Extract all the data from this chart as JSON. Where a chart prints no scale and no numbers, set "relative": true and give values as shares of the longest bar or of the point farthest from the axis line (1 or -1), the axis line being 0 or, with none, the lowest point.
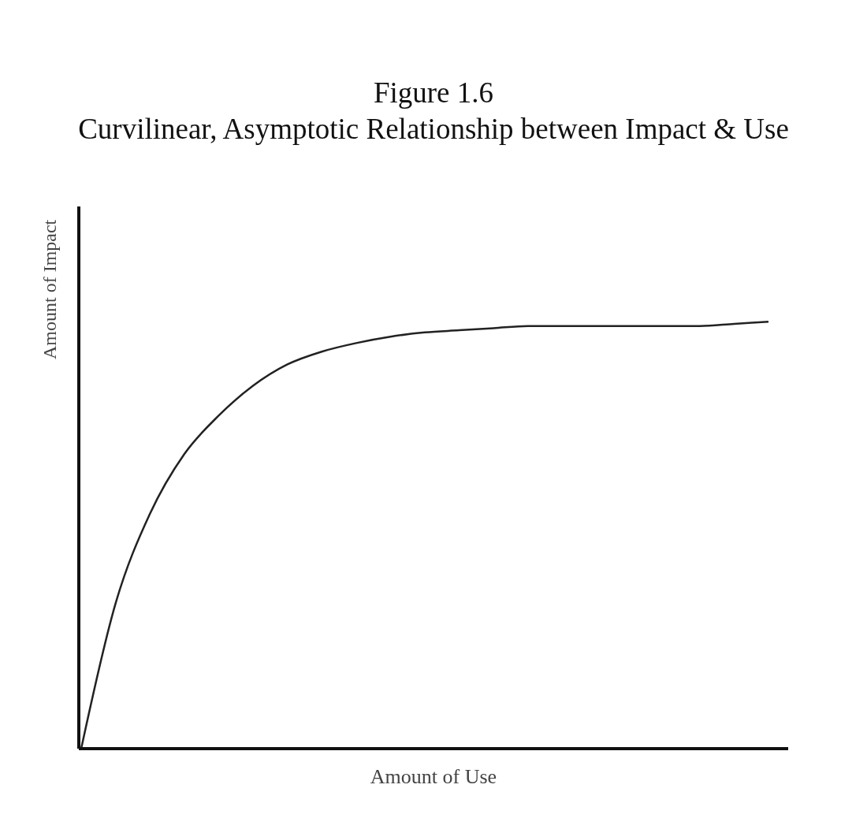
{
  "chart_data": {
    "type": "line",
    "title": "Figure  1.6",
    "subtitle": "Curvilinear, Asymptotic Relationship between Impact & Use",
    "xlabel": "Amount of Use",
    "ylabel": "Amount of Impact",
    "relative": true,
    "categories": [
      null,
      null,
      null,
      null,
      null,
      null,
      null,
      null,
      null,
      null,
      null,
      null,
      null,
      null,
      null,
      null,
      null,
      null,
      null,
      null,
      null
    ],
    "series": [
      {
        "color": "#222222",
        "values": [
          0,
          0.34,
          0.55,
          0.69,
          0.78,
          0.85,
          0.9,
          0.93,
          0.95,
          0.965,
          0.975,
          0.98,
          0.985,
          0.99,
          0.99,
          0.99,
          0.99,
          0.99,
          0.99,
          0.995,
          1
        ]
      }
    ],
    "legend": false,
    "grid": false,
    "marker": "none",
    "line_style": "solid"
  }
}
